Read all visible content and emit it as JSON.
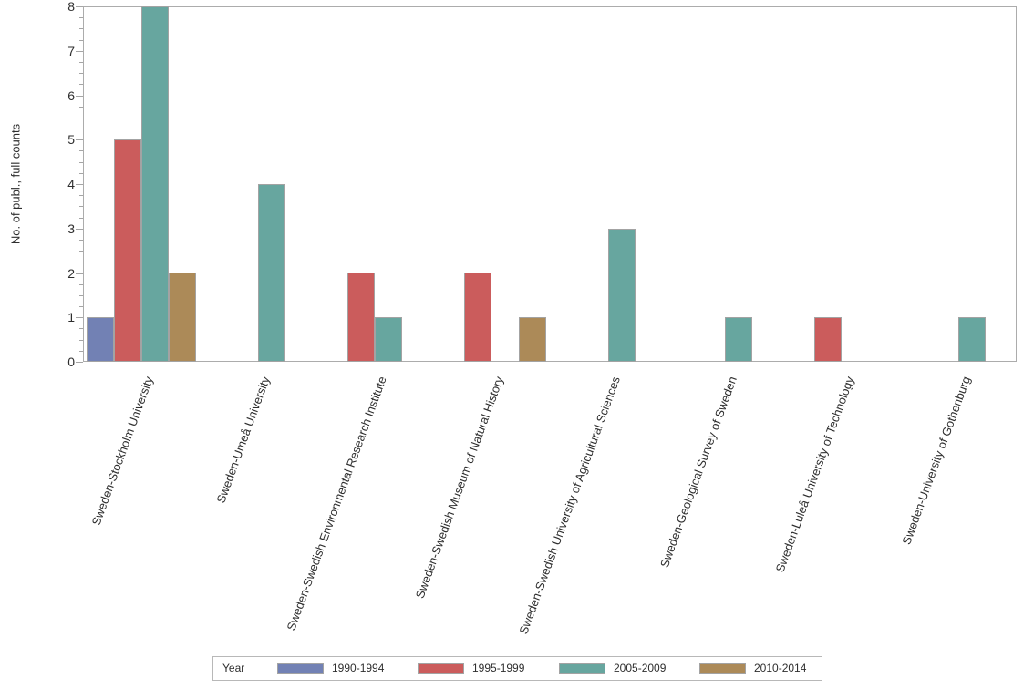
{
  "chart_data": {
    "type": "bar",
    "title": "",
    "xlabel": "",
    "ylabel": "No. of publ., full counts",
    "ylim": [
      0,
      8
    ],
    "ytick_labels": [
      "0",
      "1",
      "2",
      "3",
      "4",
      "5",
      "6",
      "7",
      "8"
    ],
    "minor_tick_step": 0.25,
    "grid": false,
    "plot_background": "#FFFFFF",
    "legend_title": "Year",
    "legend_position": "bottom",
    "categories": [
      "Sweden-Stockholm University",
      "Sweden-Umeå University",
      "Sweden-Swedish Environmental Research Institute",
      "Sweden-Swedish Museum of Natural History",
      "Sweden-Swedish University of Agricultural Sciences",
      "Sweden-Geological Survey of Sweden",
      "Sweden-Luleå University of Technology",
      "Sweden-University of Gothenburg"
    ],
    "series": [
      {
        "name": "1990-1994",
        "color": "#7281B4",
        "values": [
          1,
          0,
          0,
          0,
          0,
          0,
          0,
          0
        ]
      },
      {
        "name": "1995-1999",
        "color": "#CB5C5C",
        "values": [
          5,
          0,
          2,
          2,
          0,
          0,
          1,
          0
        ]
      },
      {
        "name": "2005-2009",
        "color": "#67A69F",
        "values": [
          8,
          4,
          1,
          0,
          3,
          1,
          0,
          1
        ]
      },
      {
        "name": "2010-2014",
        "color": "#AC8A58",
        "values": [
          2,
          0,
          0,
          1,
          0,
          0,
          0,
          0
        ]
      }
    ],
    "colors": {
      "bar_border": "#A3A3A3",
      "axis_line": "#ACACAC",
      "tick": "#A5A5A5",
      "text": "#2E2E2E",
      "legend_border": "#B8B8B8"
    }
  }
}
